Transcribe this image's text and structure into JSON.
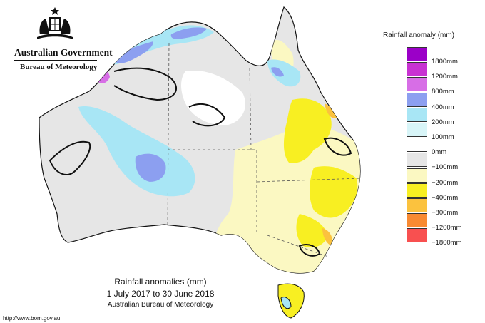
{
  "branding": {
    "government": "Australian Government",
    "bureau": "Bureau of Meteorology",
    "crest_icon": "coat-of-arms-icon"
  },
  "legend": {
    "title": "Rainfall anomaly (mm)",
    "items": [
      {
        "label": "1800mm",
        "color": "#9b00c8"
      },
      {
        "label": "1200mm",
        "color": "#c832d2"
      },
      {
        "label": "800mm",
        "color": "#d76ee6"
      },
      {
        "label": "400mm",
        "color": "#8c9ff0"
      },
      {
        "label": "200mm",
        "color": "#a8e6f5"
      },
      {
        "label": "100mm",
        "color": "#d8f5f8"
      },
      {
        "label": "0mm",
        "color": "#ffffff"
      },
      {
        "label": "−100mm",
        "color": "#e6e6e6"
      },
      {
        "label": "−200mm",
        "color": "#fbf8c2"
      },
      {
        "label": "−400mm",
        "color": "#f8ef22"
      },
      {
        "label": "−800mm",
        "color": "#fbc23e"
      },
      {
        "label": "−1200mm",
        "color": "#f88a32"
      },
      {
        "label": "−1800mm",
        "color": "#f85050"
      }
    ]
  },
  "caption": {
    "title": "Rainfall anomalies (mm)",
    "period": "1 July 2017 to 30 June 2018",
    "source": "Australian Bureau of Meteorology"
  },
  "footer": {
    "url": "http://www.bom.gov.au"
  }
}
